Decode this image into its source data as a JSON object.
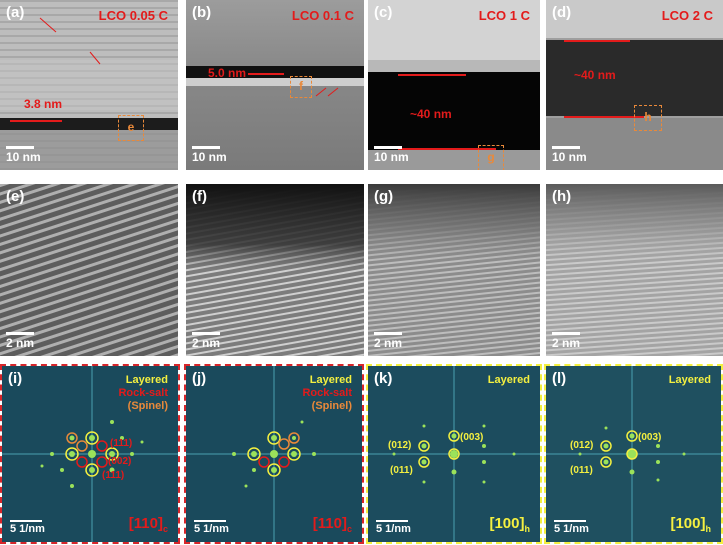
{
  "row1": {
    "a": {
      "tag": "(a)",
      "title": "LCO 0.05 C",
      "scale": "10 nm",
      "thickness": "3.8 nm",
      "box": "e"
    },
    "b": {
      "tag": "(b)",
      "title": "LCO 0.1 C",
      "scale": "10 nm",
      "thickness": "5.0 nm",
      "box": "f"
    },
    "c": {
      "tag": "(c)",
      "title": "LCO 1 C",
      "scale": "10 nm",
      "thickness": "~40 nm",
      "box": "g"
    },
    "d": {
      "tag": "(d)",
      "title": "LCO 2 C",
      "scale": "10 nm",
      "thickness": "~40 nm",
      "box": "h"
    }
  },
  "row2": {
    "e": {
      "tag": "(e)",
      "scale": "2 nm"
    },
    "f": {
      "tag": "(f)",
      "scale": "2 nm"
    },
    "g": {
      "tag": "(g)",
      "scale": "2 nm"
    },
    "h": {
      "tag": "(h)",
      "scale": "2 nm"
    }
  },
  "row3": {
    "i": {
      "tag": "(i)",
      "layered": "Layered",
      "rocksalt": "Rock-salt",
      "spinel": "(Spinel)",
      "scale": "5 1/nm",
      "zone": "[110]",
      "zone_sub": "c",
      "idx1": "(111)",
      "idx2": "(002)",
      "idx3": "(111)"
    },
    "j": {
      "tag": "(j)",
      "layered": "Layered",
      "rocksalt": "Rock-salt",
      "spinel": "(Spinel)",
      "scale": "5 1/nm",
      "zone": "[110]",
      "zone_sub": "c"
    },
    "k": {
      "tag": "(k)",
      "layered": "Layered",
      "scale": "5 1/nm",
      "zone": "[100]",
      "zone_sub": "h",
      "idx1": "(012)",
      "idx2": "(011)",
      "idx3": "(003)"
    },
    "l": {
      "tag": "(l)",
      "layered": "Layered",
      "scale": "5 1/nm",
      "zone": "[100]",
      "zone_sub": "h",
      "idx1": "(012)",
      "idx2": "(011)",
      "idx3": "(003)"
    }
  },
  "colors": {
    "red_frame": "#d7262b",
    "yellow_frame": "#f4f040",
    "label_red": "#e31b1b",
    "label_orange": "#e9893a",
    "label_yellow": "#f4f040"
  }
}
